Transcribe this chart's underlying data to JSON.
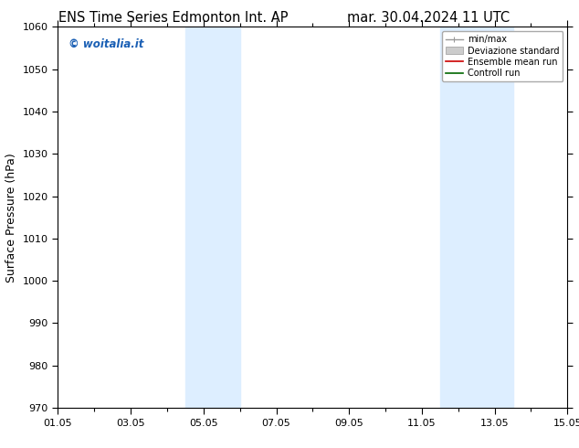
{
  "title_left": "ENS Time Series Edmonton Int. AP",
  "title_right": "mar. 30.04.2024 11 UTC",
  "ylabel": "Surface Pressure (hPa)",
  "ylim": [
    970,
    1060
  ],
  "yticks": [
    970,
    980,
    990,
    1000,
    1010,
    1020,
    1030,
    1040,
    1050,
    1060
  ],
  "xlim_start": 0.0,
  "xlim_end": 14.0,
  "xtick_positions": [
    0,
    2,
    4,
    6,
    8,
    10,
    12,
    14
  ],
  "xtick_labels": [
    "01.05",
    "03.05",
    "05.05",
    "07.05",
    "09.05",
    "11.05",
    "13.05",
    "15.05"
  ],
  "shaded_bands": [
    {
      "xmin": 3.5,
      "xmax": 5.0
    },
    {
      "xmin": 10.5,
      "xmax": 12.5
    }
  ],
  "shaded_color": "#ddeeff",
  "watermark": "© woitalia.it",
  "watermark_color": "#1a5fb4",
  "legend_entries": [
    "min/max",
    "Deviazione standard",
    "Ensemble mean run",
    "Controll run"
  ],
  "background_color": "#ffffff",
  "title_fontsize": 10.5,
  "axis_label_fontsize": 9,
  "tick_fontsize": 8
}
